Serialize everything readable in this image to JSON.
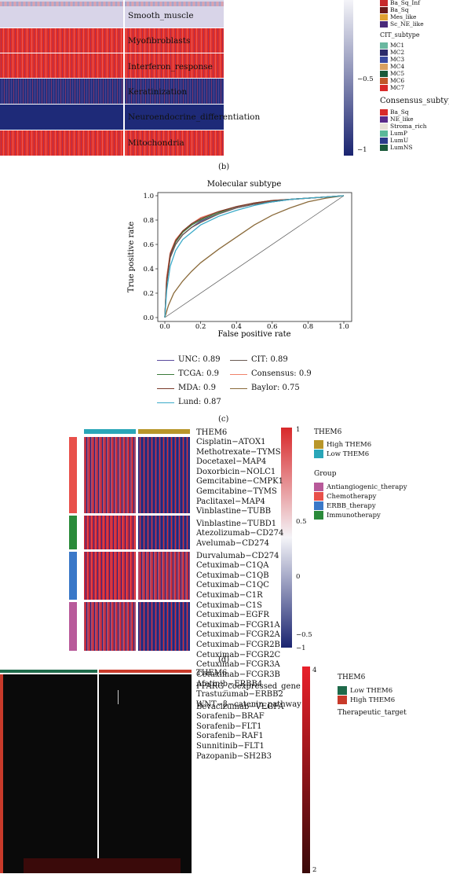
{
  "panel_b": {
    "tag": "(b)",
    "rows": [
      "Smooth_muscle",
      "Myofibroblasts",
      "Interferon_response",
      "Keratinization",
      "Neuroendocrine_differentiation",
      "Mitochondria"
    ],
    "scale_ticks": [
      "−0.5",
      "−1"
    ],
    "legend_top": [
      "Ba_Sq_Inf",
      "Ba_Sq",
      "Mes_like",
      "Sc_NE_like"
    ],
    "cit_title": "CIT_subtype",
    "cit_items": [
      "MC1",
      "MC2",
      "MC3",
      "MC4",
      "MC5",
      "MC6",
      "MC7"
    ],
    "consensus_title": "Consensus_subtype",
    "consensus_items": [
      "Ba_Sq",
      "NE_like",
      "Stroma_rich",
      "LumP",
      "LumU",
      "LumNS"
    ],
    "colors": {
      "red": "#e8282a",
      "blue": "#1e2a78",
      "white": "#f4f4f8"
    }
  },
  "panel_c": {
    "tag": "(c)",
    "legend": [
      {
        "label": "UNC: 0.89",
        "color": "#5b4a9e"
      },
      {
        "label": "CIT: 0.89",
        "color": "#6a5a52"
      },
      {
        "label": "TCGA: 0.9",
        "color": "#3a7a3a"
      },
      {
        "label": "Consensus: 0.9",
        "color": "#f0826a"
      },
      {
        "label": "MDA: 0.9",
        "color": "#7a3a2a"
      },
      {
        "label": "Baylor: 0.75",
        "color": "#8a6a3a"
      },
      {
        "label": "Lund: 0.87",
        "color": "#3aaac8"
      }
    ]
  },
  "chart_data": {
    "type": "line",
    "title": "Molecular subtype",
    "xlabel": "False positive rate",
    "ylabel": "True positive rate",
    "xlim": [
      0,
      1
    ],
    "ylim": [
      0,
      1
    ],
    "xticks": [
      "0.0",
      "0.2",
      "0.4",
      "0.6",
      "0.8",
      "1.0"
    ],
    "yticks": [
      "0.0",
      "0.2",
      "0.4",
      "0.6",
      "0.8",
      "1.0"
    ],
    "grid": false,
    "legend_position": "bottom",
    "series": [
      {
        "name": "UNC: 0.89",
        "color": "#5b4a9e",
        "x": [
          0,
          0.01,
          0.03,
          0.06,
          0.1,
          0.15,
          0.2,
          0.3,
          0.4,
          0.5,
          0.6,
          0.7,
          0.8,
          0.9,
          1
        ],
        "y": [
          0,
          0.3,
          0.5,
          0.6,
          0.68,
          0.74,
          0.79,
          0.85,
          0.9,
          0.93,
          0.95,
          0.97,
          0.98,
          0.99,
          1
        ]
      },
      {
        "name": "CIT: 0.89",
        "color": "#6a5a52",
        "x": [
          0,
          0.01,
          0.03,
          0.06,
          0.1,
          0.15,
          0.2,
          0.3,
          0.4,
          0.5,
          0.6,
          0.7,
          0.8,
          0.9,
          1
        ],
        "y": [
          0,
          0.28,
          0.49,
          0.6,
          0.68,
          0.74,
          0.78,
          0.85,
          0.9,
          0.93,
          0.95,
          0.97,
          0.98,
          0.99,
          1
        ]
      },
      {
        "name": "TCGA: 0.9",
        "color": "#3a7a3a",
        "x": [
          0,
          0.01,
          0.03,
          0.06,
          0.1,
          0.15,
          0.2,
          0.3,
          0.4,
          0.5,
          0.6,
          0.7,
          0.8,
          0.9,
          1
        ],
        "y": [
          0,
          0.32,
          0.52,
          0.62,
          0.7,
          0.76,
          0.8,
          0.86,
          0.91,
          0.94,
          0.96,
          0.97,
          0.98,
          0.99,
          1
        ]
      },
      {
        "name": "Consensus: 0.9",
        "color": "#f0826a",
        "x": [
          0,
          0.01,
          0.03,
          0.06,
          0.1,
          0.15,
          0.2,
          0.3,
          0.4,
          0.5,
          0.6,
          0.7,
          0.8,
          0.9,
          1
        ],
        "y": [
          0,
          0.33,
          0.53,
          0.64,
          0.71,
          0.77,
          0.82,
          0.87,
          0.91,
          0.94,
          0.96,
          0.97,
          0.98,
          0.99,
          1
        ]
      },
      {
        "name": "MDA: 0.9",
        "color": "#7a3a2a",
        "x": [
          0,
          0.01,
          0.03,
          0.06,
          0.1,
          0.15,
          0.2,
          0.3,
          0.4,
          0.5,
          0.6,
          0.7,
          0.8,
          0.9,
          1
        ],
        "y": [
          0,
          0.3,
          0.52,
          0.63,
          0.71,
          0.77,
          0.81,
          0.87,
          0.91,
          0.94,
          0.96,
          0.97,
          0.98,
          0.99,
          1
        ]
      },
      {
        "name": "Baylor: 0.75",
        "color": "#8a6a3a",
        "x": [
          0,
          0.02,
          0.05,
          0.1,
          0.15,
          0.2,
          0.3,
          0.4,
          0.5,
          0.6,
          0.7,
          0.8,
          0.9,
          1
        ],
        "y": [
          0,
          0.1,
          0.2,
          0.3,
          0.38,
          0.45,
          0.56,
          0.66,
          0.76,
          0.84,
          0.9,
          0.95,
          0.98,
          1
        ]
      },
      {
        "name": "Lund: 0.87",
        "color": "#3aaac8",
        "x": [
          0,
          0.01,
          0.03,
          0.06,
          0.1,
          0.15,
          0.2,
          0.3,
          0.4,
          0.5,
          0.6,
          0.7,
          0.8,
          0.9,
          1
        ],
        "y": [
          0,
          0.22,
          0.42,
          0.55,
          0.64,
          0.7,
          0.76,
          0.83,
          0.88,
          0.92,
          0.95,
          0.97,
          0.98,
          0.99,
          1
        ]
      }
    ]
  },
  "panel_d": {
    "tag": "(d)",
    "top_label": "THEM6",
    "groups": [
      {
        "name": "Chemotherapy",
        "color": "#e8504a",
        "rows": [
          "Cisplatin−ATOX1",
          "Methotrexate−TYMS",
          "Docetaxel−MAP4",
          "Doxorbicin−NOLC1",
          "Gemcitabine−CMPK1",
          "Gemcitabine−TYMS",
          "Paclitaxel−MAP4",
          "Vinblastine−TUBB"
        ]
      },
      {
        "name": "Immunotherapy",
        "color": "#2a8a3a",
        "rows": [
          "Vinblastine−TUBD1",
          "Atezolizumab−CD274",
          "Avelumab−CD274"
        ]
      },
      {
        "name": "ERBB_therapy",
        "color": "#3a78c8",
        "rows": [
          "Durvalumab−CD274",
          "Cetuximab−C1QA",
          "Cetuximab−C1QB",
          "Cetuximab−C1QC",
          "Cetuximab−C1R",
          "Cetuximab−C1S",
          "Cetuximab−EGFR",
          "Cetuximab−FCGR1A",
          "Cetuximab−FCGR2A",
          "Cetuximab−FCGR2B",
          "Cetuximab−FCGR2C",
          "Cetuximab−FCGR3A",
          "Cetuximab−FCGR3B",
          "Afatinib−ERBB4",
          "Trastuzumab−ERBB2"
        ]
      },
      {
        "name": "Antiangiogenic_therapy",
        "color": "#b85a9a",
        "rows": [
          "Bevacizumab−VEGFA",
          "Sorafenib−BRAF",
          "Sorafenib−FLT1",
          "Sorafenib−RAF1",
          "Sunnitinib−FLT1",
          "Pazopanib−SH2B3"
        ]
      }
    ],
    "scale_ticks": [
      "1",
      "0.5",
      "0",
      "−0.5",
      "−1"
    ],
    "legend_them6_title": "THEM6",
    "legend_them6": [
      {
        "label": "High THEM6",
        "color": "#b8962a"
      },
      {
        "label": "Low THEM6",
        "color": "#2aa6b8"
      }
    ],
    "legend_group_title": "Group",
    "legend_group": [
      {
        "label": "Antiangiogenic_therapy",
        "color": "#b85a9a"
      },
      {
        "label": "Chemotherapy",
        "color": "#e8504a"
      },
      {
        "label": "ERBB_therapy",
        "color": "#3a78c8"
      },
      {
        "label": "Immunotherapy",
        "color": "#2a8a3a"
      }
    ]
  },
  "panel_e": {
    "rows": [
      "THEM6",
      "PPARG_coexpressed_gene",
      "WNT−β−catenin_pathway"
    ],
    "scale_ticks": [
      "4",
      "2"
    ],
    "legend_title": "THEM6",
    "legend": [
      {
        "label": "Low THEM6",
        "color": "#1e6a4a"
      },
      {
        "label": "High THEM6",
        "color": "#c83a2a"
      }
    ],
    "legend_title2": "Therapeutic_target"
  }
}
